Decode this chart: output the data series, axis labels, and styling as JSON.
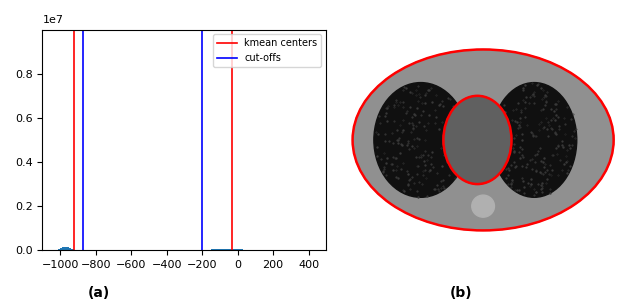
{
  "hist_title": "",
  "xlabel": "",
  "ylabel": "",
  "ylim": [
    0,
    10000000.0
  ],
  "xlim": [
    -1100,
    500
  ],
  "kmean_centers": [
    -920,
    -30
  ],
  "cutoffs": [
    -870,
    -200
  ],
  "bar_color": "#1f77b4",
  "kmean_color": "red",
  "cutoff_color": "blue",
  "legend_kmean": "kmean centers",
  "legend_cutoff": "cut-offs",
  "label_a": "(a)",
  "label_b": "(b)",
  "yticks": [
    0.0,
    0.2,
    0.4,
    0.6,
    0.8
  ],
  "xticks": [
    -1000,
    -800,
    -600,
    -400,
    -200,
    0,
    200,
    400
  ]
}
